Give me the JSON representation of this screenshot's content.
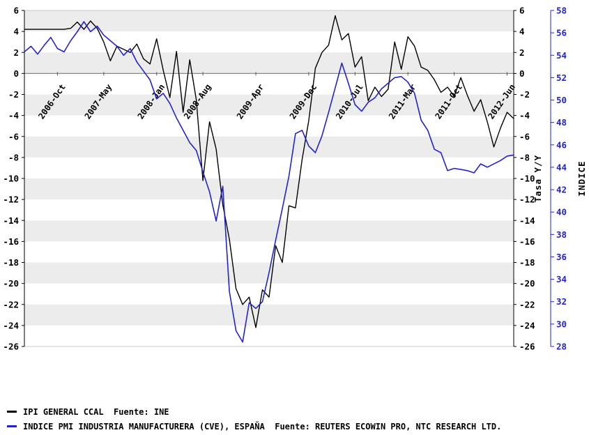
{
  "chart_data": {
    "type": "line",
    "title": "",
    "x_unit": "month",
    "x_range": [
      "2006-05",
      "2012-07"
    ],
    "x_tick_labels": [
      "2006-Oct",
      "2007-May",
      "2008-Jan",
      "2008-Aug",
      "2009-Apr",
      "2009-Dec",
      "2010-Jul",
      "2011-Mar",
      "2011-Oct",
      "2012-Jun"
    ],
    "x_tick_indices": [
      5,
      12,
      20,
      27,
      35,
      43,
      50,
      58,
      65,
      73
    ],
    "left_axis": {
      "label": "Tasa Y/Y",
      "min": -26,
      "max": 6,
      "step": 2,
      "color": "#000000"
    },
    "right_axis": {
      "label": "INDICE",
      "min": 28,
      "max": 58,
      "step": 2,
      "color": "#2323cc"
    },
    "grid": {
      "band_color": "#ececec",
      "band_alt_color": "#ffffff",
      "zero_line_color": "#8a8a8a",
      "frame_color": "#c9c9c9"
    },
    "series": [
      {
        "name": "IPI GENERAL CCAL",
        "source": "Fuente: INE",
        "axis": "left",
        "color": "#000000",
        "values": [
          4.2,
          4.2,
          4.2,
          4.2,
          4.2,
          4.2,
          4.2,
          4.3,
          4.9,
          4.2,
          5.0,
          4.3,
          3.0,
          1.2,
          2.6,
          2.3,
          2.0,
          2.8,
          1.4,
          0.9,
          3.3,
          0.3,
          -2.3,
          2.1,
          -3.7,
          1.3,
          -2.5,
          -10.2,
          -4.6,
          -7.2,
          -12.5,
          -15.8,
          -20.5,
          -22.0,
          -21.3,
          -24.2,
          -20.6,
          -21.3,
          -16.4,
          -18.0,
          -12.6,
          -12.8,
          -8.2,
          -4.5,
          0.5,
          2.0,
          2.7,
          5.5,
          3.2,
          3.8,
          0.6,
          1.6,
          -2.6,
          -1.3,
          -2.2,
          -1.5,
          3.0,
          0.4,
          3.5,
          2.6,
          0.6,
          0.3,
          -0.6,
          -1.8,
          -1.3,
          -2.2,
          -0.4,
          -2.1,
          -3.6,
          -2.5,
          -4.6,
          -7.0,
          -5.2,
          -3.7,
          -4.3
        ]
      },
      {
        "name": "INDICE PMI INDUSTRIA MANUFACTURERA (CVE), ESPAÑA",
        "source": "Fuente: REUTERS ECOWIN PRO, NTC RESEARCH LTD.",
        "axis": "right",
        "color": "#2323cc",
        "values": [
          54.3,
          54.8,
          54.1,
          54.9,
          55.6,
          54.6,
          54.3,
          55.3,
          56.1,
          57.0,
          56.1,
          56.6,
          55.8,
          55.3,
          54.8,
          54.0,
          54.6,
          53.4,
          52.6,
          51.8,
          50.1,
          50.6,
          49.7,
          48.4,
          47.3,
          46.2,
          45.5,
          43.6,
          41.8,
          39.2,
          42.3,
          32.9,
          29.4,
          28.4,
          31.9,
          31.4,
          32.0,
          34.6,
          37.5,
          40.3,
          43.2,
          47.0,
          47.3,
          45.9,
          45.3,
          46.8,
          48.9,
          51.1,
          53.3,
          51.5,
          49.6,
          49.0,
          49.8,
          50.2,
          51.0,
          51.5,
          52.0,
          52.1,
          51.6,
          50.6,
          48.2,
          47.3,
          45.6,
          45.3,
          43.7,
          43.9,
          43.8,
          43.7,
          43.5,
          44.3,
          44.0,
          44.3,
          44.6,
          45.0,
          45.1
        ]
      }
    ]
  },
  "legend": {
    "items": [
      {
        "color": "#000000",
        "text": "IPI GENERAL CCAL  Fuente: INE"
      },
      {
        "color": "#2323cc",
        "text": "INDICE PMI INDUSTRIA MANUFACTURERA (CVE), ESPAÑA  Fuente: REUTERS ECOWIN PRO, NTC RESEARCH LTD."
      }
    ]
  }
}
